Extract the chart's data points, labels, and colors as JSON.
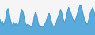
{
  "values": [
    55,
    48,
    52,
    45,
    50,
    58,
    72,
    78,
    68,
    55,
    48,
    42,
    50,
    44,
    48,
    42,
    46,
    52,
    68,
    75,
    72,
    60,
    50,
    44,
    46,
    42,
    44,
    40,
    43,
    48,
    62,
    70,
    65,
    52,
    44,
    40,
    42,
    40,
    42,
    45,
    50,
    56,
    65,
    68,
    60,
    50,
    44,
    42,
    44,
    48,
    55,
    62,
    70,
    75,
    68,
    58,
    50,
    52,
    62,
    72,
    80,
    75,
    68,
    60,
    55,
    50,
    55,
    62,
    70,
    78,
    85,
    82,
    72,
    62,
    55,
    50,
    45,
    50,
    58,
    68,
    75,
    80,
    72,
    62
  ],
  "fill_color": "#5aabdc",
  "line_color": "#4a95c8",
  "background_color": "#f5f5f5",
  "ylim_min": 25,
  "ylim_max": 95
}
